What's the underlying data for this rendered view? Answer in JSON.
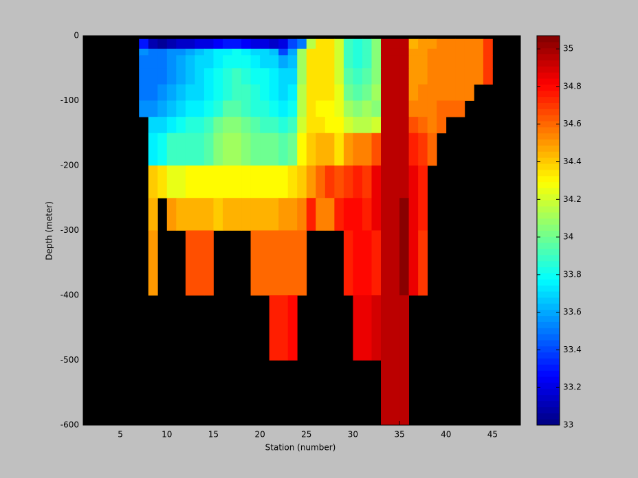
{
  "chart_data": {
    "type": "heatmap",
    "colormap": "jet",
    "xlabel": "Station (number)",
    "ylabel": "Depth (meter)",
    "xlim": [
      1,
      48
    ],
    "ylim": [
      -600,
      0
    ],
    "xticks": [
      5,
      10,
      15,
      20,
      25,
      30,
      35,
      40,
      45
    ],
    "yticks": [
      -600,
      -500,
      -400,
      -300,
      -200,
      -100,
      0
    ],
    "clim": [
      33,
      35.07
    ],
    "cticks": [
      33,
      33.2,
      33.4,
      33.6,
      33.8,
      34,
      34.2,
      34.4,
      34.6,
      34.8,
      35
    ],
    "x_edges": [
      7,
      8,
      9,
      10,
      11,
      12,
      13,
      14,
      15,
      16,
      17,
      18,
      19,
      20,
      21,
      22,
      23,
      24,
      25,
      26,
      27,
      28,
      29,
      30,
      31,
      32,
      33,
      34,
      35,
      36,
      37,
      38,
      39,
      40,
      41,
      42,
      43,
      44,
      45
    ],
    "y_edges": [
      -5,
      -20,
      -30,
      -50,
      -75,
      -100,
      -125,
      -150,
      -200,
      -250,
      -300,
      -400,
      -500,
      -600
    ],
    "values": [
      [
        33.3,
        33.1,
        33.05,
        33.1,
        33.15,
        33.15,
        33.2,
        33.2,
        33.25,
        33.3,
        33.3,
        33.25,
        33.2,
        33.2,
        33.15,
        33.2,
        33.4,
        33.5,
        34.15,
        34.35,
        34.35,
        34.2,
        33.9,
        33.85,
        33.9,
        34.05,
        34.95,
        34.95,
        34.95,
        34.45,
        34.5,
        34.5,
        34.55,
        34.55,
        34.55,
        34.55,
        34.55,
        34.7
      ],
      [
        33.55,
        33.5,
        33.5,
        33.55,
        33.55,
        33.6,
        33.65,
        33.7,
        33.75,
        33.75,
        33.8,
        33.75,
        33.7,
        33.7,
        33.65,
        33.4,
        33.6,
        34.1,
        34.35,
        34.35,
        34.35,
        34.2,
        33.9,
        33.85,
        33.9,
        34.05,
        34.95,
        34.95,
        34.95,
        34.5,
        34.5,
        34.55,
        34.55,
        34.55,
        34.55,
        34.55,
        34.55,
        34.7
      ],
      [
        33.5,
        33.5,
        33.5,
        33.55,
        33.6,
        33.65,
        33.7,
        33.7,
        33.75,
        33.8,
        33.8,
        33.8,
        33.75,
        33.7,
        33.7,
        33.6,
        33.65,
        34.1,
        34.35,
        34.35,
        34.35,
        34.2,
        33.9,
        33.85,
        33.9,
        34.05,
        34.95,
        34.95,
        34.95,
        34.5,
        34.5,
        34.55,
        34.55,
        34.55,
        34.55,
        34.55,
        34.55,
        34.7
      ],
      [
        33.5,
        33.5,
        33.5,
        33.55,
        33.6,
        33.65,
        33.7,
        33.75,
        33.8,
        33.85,
        33.9,
        33.85,
        33.8,
        33.8,
        33.75,
        33.7,
        33.7,
        34.1,
        34.35,
        34.35,
        34.35,
        34.2,
        33.95,
        33.9,
        33.95,
        34.05,
        34.95,
        34.95,
        34.95,
        34.5,
        34.5,
        34.55,
        34.55,
        34.55,
        34.55,
        34.55,
        34.55,
        34.7
      ],
      [
        33.5,
        33.5,
        33.55,
        33.6,
        33.65,
        33.7,
        33.7,
        33.75,
        33.8,
        33.85,
        33.9,
        33.9,
        33.85,
        33.8,
        33.75,
        33.7,
        33.75,
        34.15,
        34.35,
        34.35,
        34.35,
        34.25,
        34.0,
        33.95,
        34.0,
        34.1,
        34.95,
        34.95,
        34.95,
        34.5,
        34.55,
        34.55,
        34.55,
        34.55,
        34.55,
        34.55,
        null,
        null
      ],
      [
        33.55,
        33.55,
        33.6,
        33.65,
        33.7,
        33.75,
        33.75,
        33.8,
        33.85,
        33.95,
        33.95,
        33.9,
        33.85,
        33.85,
        33.8,
        33.75,
        33.8,
        34.15,
        34.35,
        34.3,
        34.3,
        34.25,
        34.1,
        34.05,
        34.1,
        34.05,
        34.95,
        34.95,
        34.95,
        34.55,
        34.55,
        34.55,
        34.6,
        34.6,
        34.6,
        null,
        null,
        null
      ],
      [
        null,
        33.7,
        33.7,
        33.75,
        33.8,
        33.85,
        33.85,
        33.9,
        34.0,
        34.05,
        34.05,
        34.0,
        33.95,
        33.9,
        33.9,
        33.85,
        33.9,
        34.2,
        34.35,
        34.35,
        34.3,
        34.3,
        34.2,
        34.15,
        34.15,
        34.2,
        34.95,
        34.95,
        34.95,
        34.65,
        34.6,
        34.55,
        34.6,
        null,
        null,
        null,
        null,
        null
      ],
      [
        null,
        33.75,
        33.8,
        33.9,
        33.9,
        33.9,
        33.9,
        33.95,
        34.05,
        34.1,
        34.1,
        34.05,
        34.0,
        34.0,
        34.0,
        33.95,
        34.0,
        34.3,
        34.4,
        34.45,
        34.45,
        34.35,
        34.5,
        34.55,
        34.55,
        34.65,
        34.95,
        34.95,
        34.95,
        34.75,
        34.7,
        34.6,
        null,
        null,
        null,
        null,
        null,
        null
      ],
      [
        null,
        34.4,
        34.35,
        34.25,
        34.25,
        34.3,
        34.3,
        34.3,
        34.3,
        34.3,
        34.3,
        34.3,
        34.3,
        34.3,
        34.3,
        34.3,
        34.35,
        34.4,
        34.5,
        34.6,
        34.7,
        34.65,
        34.7,
        34.75,
        34.7,
        34.85,
        34.95,
        34.95,
        34.95,
        34.85,
        34.75,
        null,
        null,
        null,
        null,
        null,
        null,
        null
      ],
      [
        null,
        34.45,
        null,
        34.5,
        34.45,
        34.45,
        34.45,
        34.45,
        34.4,
        34.45,
        34.45,
        34.45,
        34.45,
        34.45,
        34.45,
        34.5,
        34.5,
        34.55,
        34.75,
        34.55,
        34.55,
        34.75,
        34.8,
        34.8,
        34.75,
        34.85,
        34.95,
        34.95,
        35.05,
        34.85,
        34.75,
        null,
        null,
        null,
        null,
        null,
        null,
        null
      ],
      [
        null,
        34.5,
        null,
        null,
        null,
        34.65,
        34.65,
        34.65,
        null,
        null,
        null,
        null,
        34.6,
        34.6,
        34.6,
        34.6,
        34.6,
        34.6,
        null,
        null,
        null,
        null,
        34.75,
        34.8,
        34.8,
        34.75,
        34.95,
        34.95,
        35.05,
        34.85,
        34.7,
        null,
        null,
        null,
        null,
        null,
        null,
        null
      ],
      [
        null,
        null,
        null,
        null,
        null,
        null,
        null,
        null,
        null,
        null,
        null,
        null,
        null,
        null,
        34.75,
        34.75,
        34.8,
        null,
        null,
        null,
        null,
        null,
        null,
        34.85,
        34.85,
        34.9,
        34.95,
        34.95,
        34.95,
        null,
        null,
        null,
        null,
        null,
        null,
        null,
        null,
        null
      ],
      [
        null,
        null,
        null,
        null,
        null,
        null,
        null,
        null,
        null,
        null,
        null,
        null,
        null,
        null,
        null,
        null,
        null,
        null,
        null,
        null,
        null,
        null,
        null,
        null,
        null,
        null,
        34.95,
        34.95,
        34.95,
        null,
        null,
        null,
        null,
        null,
        null,
        null,
        null,
        null
      ]
    ]
  }
}
